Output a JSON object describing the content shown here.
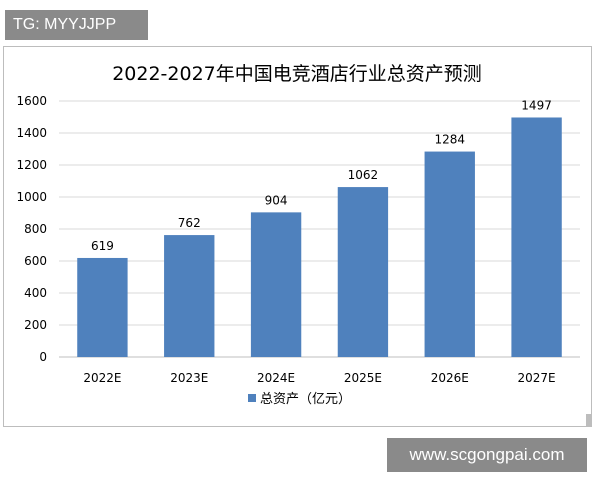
{
  "badge": {
    "text": "TG: MYYJJPP"
  },
  "watermark": {
    "text": "www.scgongpai.com"
  },
  "chart_data": {
    "type": "bar",
    "title": "2022-2027年中国电竞酒店行业总资产预测",
    "categories": [
      "2022E",
      "2023E",
      "2024E",
      "2025E",
      "2026E",
      "2027E"
    ],
    "series": [
      {
        "name": "总资产（亿元）",
        "values": [
          619,
          762,
          904,
          1062,
          1284,
          1497
        ]
      }
    ],
    "ylim": [
      0,
      1600
    ],
    "yticks": [
      0,
      200,
      400,
      600,
      800,
      1000,
      1200,
      1400,
      1600
    ],
    "grid": true,
    "legend": "bottom",
    "data_labels": true,
    "colors": {
      "bar": "#4f81bd",
      "grid": "#d9d9d9",
      "axis": "#bfbfbf",
      "text": "#000000"
    }
  }
}
